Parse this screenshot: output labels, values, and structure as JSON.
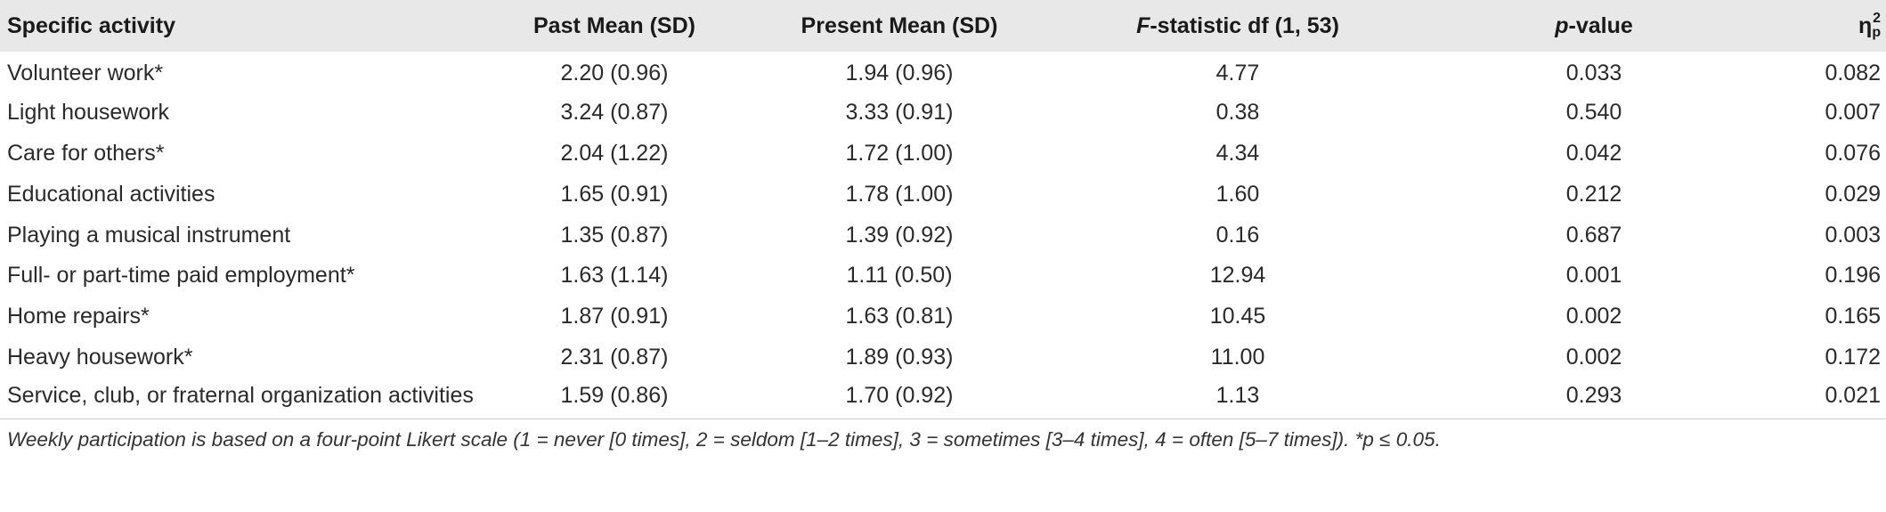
{
  "table": {
    "headers": {
      "activity": "Specific activity",
      "past": "Past Mean (SD)",
      "present": "Present Mean (SD)",
      "f_italic": "F",
      "f_rest": "-statistic df (1, 53)",
      "p_italic": "p",
      "p_rest": "-value",
      "eta_symbol": "η",
      "eta_sub": "p",
      "eta_sup": "2"
    },
    "rows": [
      {
        "activity": "Volunteer work*",
        "past": "2.20 (0.96)",
        "present": "1.94 (0.96)",
        "f": "4.77",
        "p": "0.033",
        "eta": "0.082"
      },
      {
        "activity": "Light housework",
        "past": "3.24 (0.87)",
        "present": "3.33 (0.91)",
        "f": "0.38",
        "p": "0.540",
        "eta": "0.007"
      },
      {
        "activity": "Care for others*",
        "past": "2.04 (1.22)",
        "present": "1.72 (1.00)",
        "f": "4.34",
        "p": "0.042",
        "eta": "0.076"
      },
      {
        "activity": "Educational activities",
        "past": "1.65 (0.91)",
        "present": "1.78 (1.00)",
        "f": "1.60",
        "p": "0.212",
        "eta": "0.029"
      },
      {
        "activity": "Playing a musical instrument",
        "past": "1.35 (0.87)",
        "present": "1.39 (0.92)",
        "f": "0.16",
        "p": "0.687",
        "eta": "0.003"
      },
      {
        "activity": "Full- or part-time paid employment*",
        "past": "1.63 (1.14)",
        "present": "1.11 (0.50)",
        "f": "12.94",
        "p": "0.001",
        "eta": "0.196"
      },
      {
        "activity": "Home repairs*",
        "past": "1.87 (0.91)",
        "present": "1.63 (0.81)",
        "f": "10.45",
        "p": "0.002",
        "eta": "0.165"
      },
      {
        "activity": "Heavy housework*",
        "past": "2.31 (0.87)",
        "present": "1.89 (0.93)",
        "f": "11.00",
        "p": "0.002",
        "eta": "0.172"
      },
      {
        "activity": "Service, club, or fraternal organization activities",
        "past": "1.59 (0.86)",
        "present": "1.70 (0.92)",
        "f": "1.13",
        "p": "0.293",
        "eta": "0.021"
      }
    ]
  },
  "footnote": "Weekly participation is based on a four-point Likert scale (1 = never [0 times], 2 = seldom [1–2 times], 3 = sometimes [3–4 times], 4 = often [5–7 times]). *p ≤ 0.05."
}
